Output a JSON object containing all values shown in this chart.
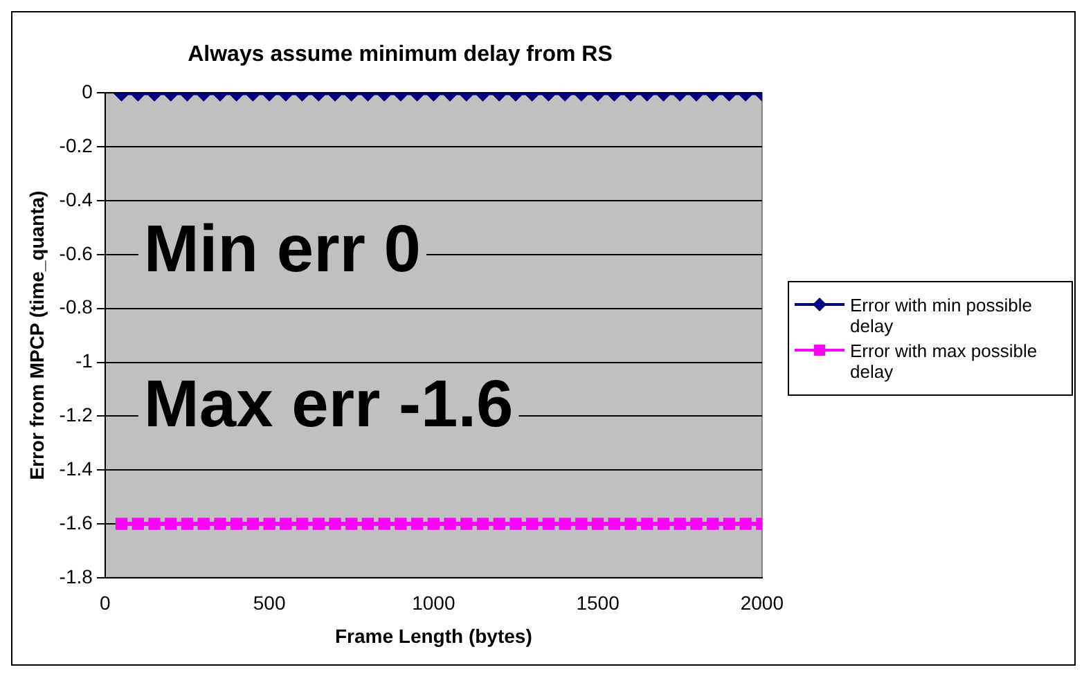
{
  "chart_data": {
    "type": "line",
    "title": "Always assume minimum delay from RS",
    "xlabel": "Frame Length (bytes)",
    "ylabel": "Error from MPCP (time_quanta)",
    "x": [
      50,
      100,
      150,
      200,
      250,
      300,
      350,
      400,
      450,
      500,
      550,
      600,
      650,
      700,
      750,
      800,
      850,
      900,
      950,
      1000,
      1050,
      1100,
      1150,
      1200,
      1250,
      1300,
      1350,
      1400,
      1450,
      1500,
      1550,
      1600,
      1650,
      1700,
      1750,
      1800,
      1850,
      1900,
      1950,
      2000
    ],
    "series": [
      {
        "name": "Error with min possible delay",
        "color": "#000080",
        "marker": "diamond",
        "values": [
          0,
          0,
          0,
          0,
          0,
          0,
          0,
          0,
          0,
          0,
          0,
          0,
          0,
          0,
          0,
          0,
          0,
          0,
          0,
          0,
          0,
          0,
          0,
          0,
          0,
          0,
          0,
          0,
          0,
          0,
          0,
          0,
          0,
          0,
          0,
          0,
          0,
          0,
          0,
          0
        ]
      },
      {
        "name": "Error with max possible delay",
        "color": "#ff00ff",
        "marker": "square",
        "values": [
          -1.6,
          -1.6,
          -1.6,
          -1.6,
          -1.6,
          -1.6,
          -1.6,
          -1.6,
          -1.6,
          -1.6,
          -1.6,
          -1.6,
          -1.6,
          -1.6,
          -1.6,
          -1.6,
          -1.6,
          -1.6,
          -1.6,
          -1.6,
          -1.6,
          -1.6,
          -1.6,
          -1.6,
          -1.6,
          -1.6,
          -1.6,
          -1.6,
          -1.6,
          -1.6,
          -1.6,
          -1.6,
          -1.6,
          -1.6,
          -1.6,
          -1.6,
          -1.6,
          -1.6,
          -1.6,
          -1.6
        ]
      }
    ],
    "xlim": [
      0,
      2000
    ],
    "xticks": [
      0,
      500,
      1000,
      1500,
      2000
    ],
    "ylim": [
      -1.8,
      0
    ],
    "yticks": [
      -1.8,
      -1.6,
      -1.4,
      -1.2,
      -1,
      -0.8,
      -0.6,
      -0.4,
      -0.2,
      0
    ],
    "grid": "y",
    "legend": "right",
    "annotations": [
      "Min err 0",
      "Max err -1.6"
    ]
  }
}
